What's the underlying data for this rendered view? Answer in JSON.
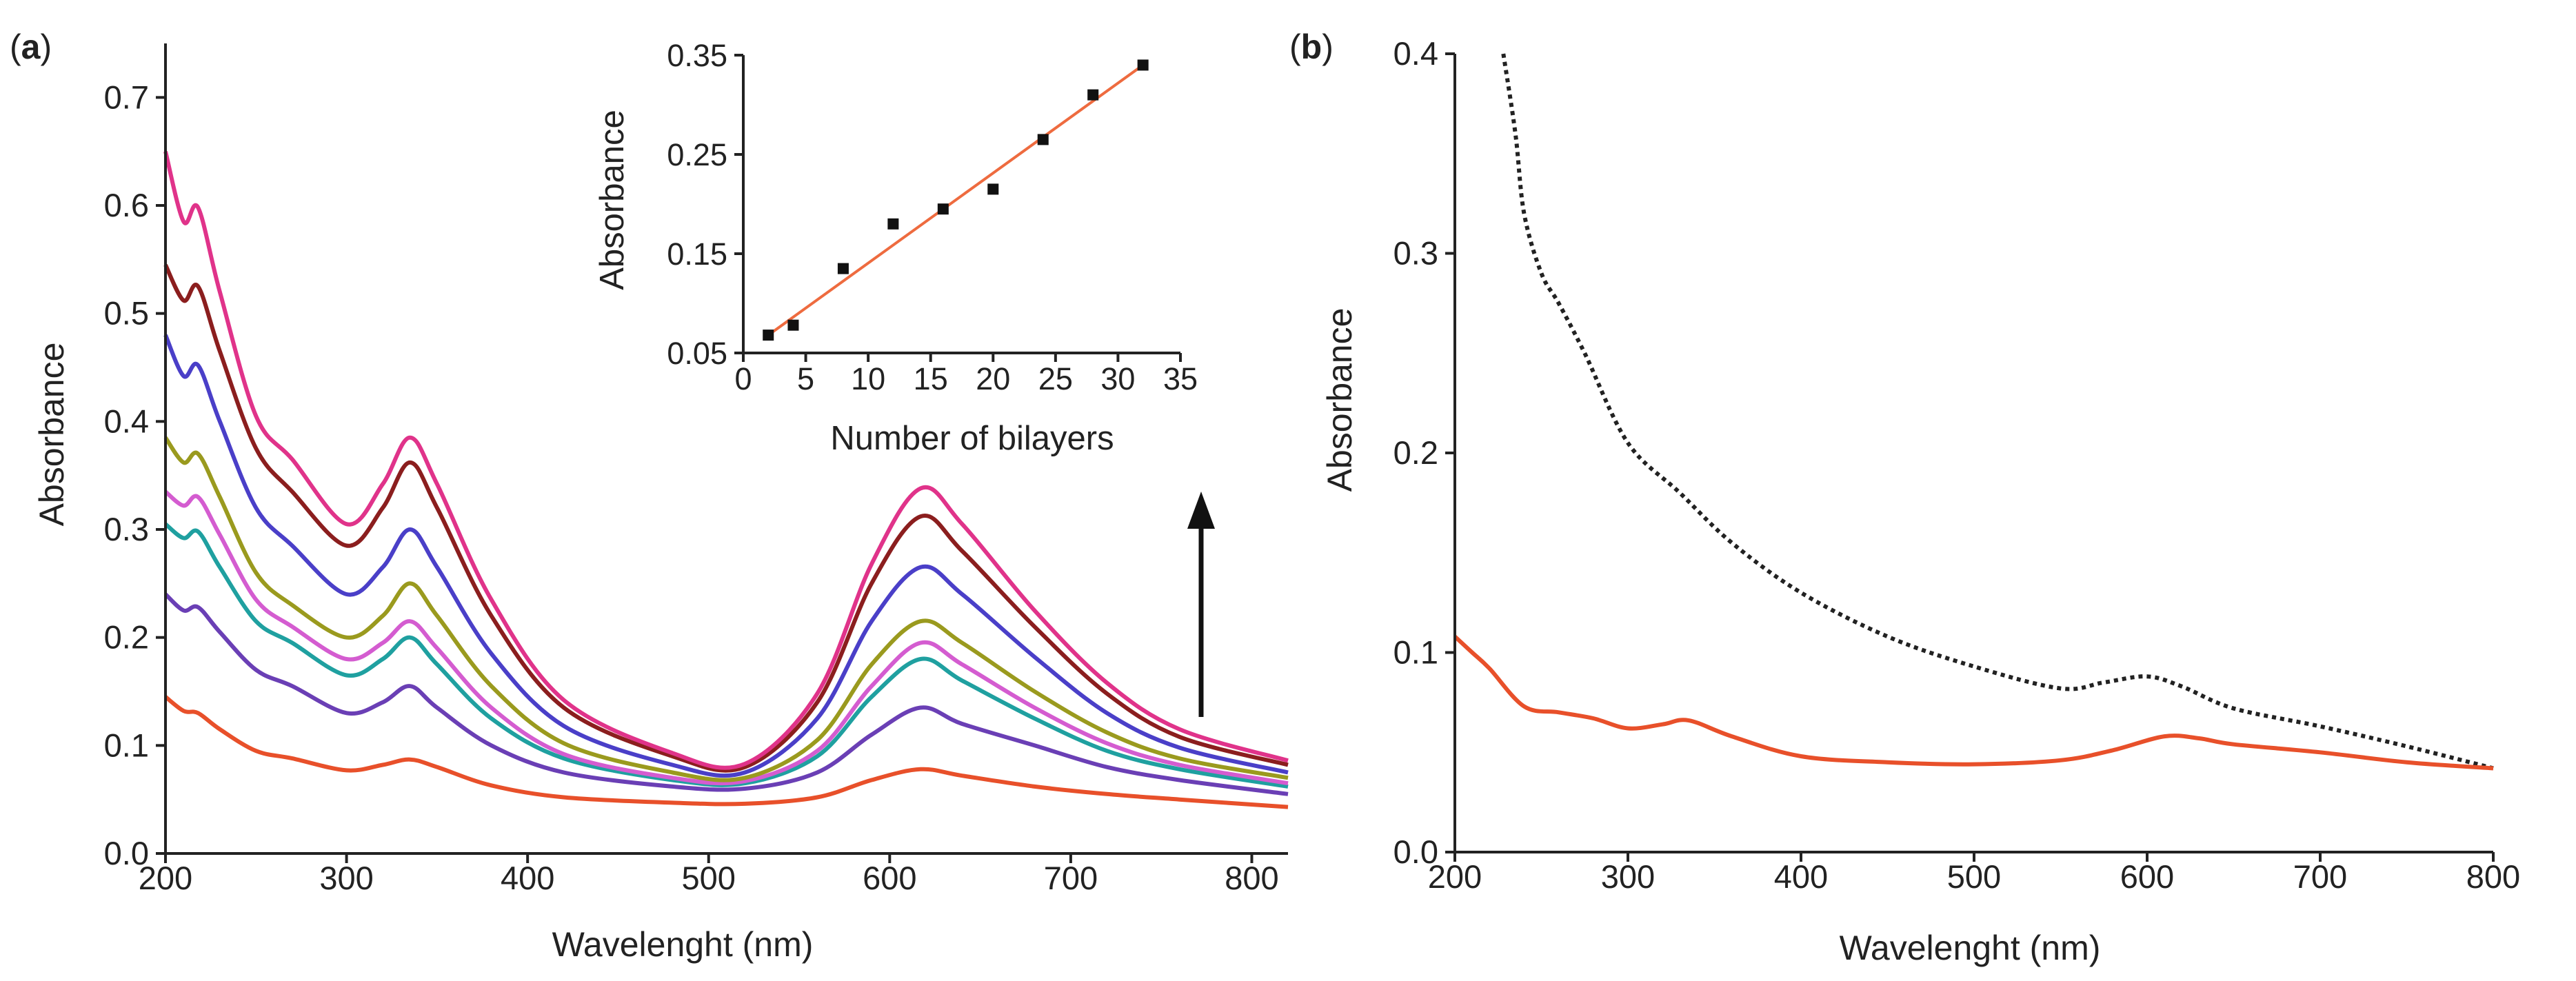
{
  "colors": {
    "axis": "#222222",
    "inset_fit": "#ee6b3f",
    "inset_marker": "#111111",
    "panel_b_dotted": "#222222",
    "panel_b_solid": "#e8502a"
  },
  "chart_data": [
    {
      "panel": "a",
      "panel_label_open": "(",
      "panel_label_letter": "a",
      "panel_label_close": ")",
      "type": "line",
      "xlabel": "Wavelenght (nm)",
      "ylabel": "Absorbance",
      "xlim": [
        200,
        820
      ],
      "ylim": [
        0,
        0.75
      ],
      "xticks": [
        200,
        300,
        400,
        500,
        600,
        700,
        800
      ],
      "yticks": [
        0.0,
        0.1,
        0.2,
        0.3,
        0.4,
        0.5,
        0.6,
        0.7
      ],
      "xtick_labels": [
        "200",
        "300",
        "400",
        "500",
        "600",
        "700",
        "800"
      ],
      "ytick_labels": [
        "0.0",
        "0.1",
        "0.2",
        "0.3",
        "0.4",
        "0.5",
        "0.6",
        "0.7"
      ],
      "annotation": "upward arrow indicating increasing number of bilayers",
      "x": [
        200,
        210,
        218,
        230,
        250,
        270,
        300,
        320,
        335,
        350,
        380,
        420,
        480,
        520,
        560,
        590,
        617,
        640,
        680,
        720,
        760,
        820
      ],
      "series": [
        {
          "color": "#e8502a",
          "values": [
            0.145,
            0.132,
            0.13,
            0.115,
            0.095,
            0.088,
            0.077,
            0.082,
            0.087,
            0.08,
            0.063,
            0.052,
            0.047,
            0.046,
            0.052,
            0.068,
            0.078,
            0.072,
            0.062,
            0.055,
            0.05,
            0.043
          ]
        },
        {
          "color": "#6a3fb5",
          "values": [
            0.24,
            0.225,
            0.228,
            0.205,
            0.17,
            0.155,
            0.13,
            0.14,
            0.155,
            0.135,
            0.1,
            0.075,
            0.062,
            0.06,
            0.075,
            0.11,
            0.135,
            0.12,
            0.1,
            0.08,
            0.068,
            0.055
          ]
        },
        {
          "color": "#1fa0a0",
          "values": [
            0.305,
            0.292,
            0.298,
            0.265,
            0.215,
            0.195,
            0.165,
            0.18,
            0.2,
            0.175,
            0.125,
            0.088,
            0.068,
            0.065,
            0.09,
            0.145,
            0.18,
            0.16,
            0.125,
            0.095,
            0.078,
            0.062
          ]
        },
        {
          "color": "#d45cd0",
          "values": [
            0.335,
            0.322,
            0.33,
            0.295,
            0.235,
            0.21,
            0.18,
            0.195,
            0.215,
            0.19,
            0.135,
            0.092,
            0.07,
            0.067,
            0.095,
            0.155,
            0.195,
            0.175,
            0.135,
            0.102,
            0.082,
            0.065
          ]
        },
        {
          "color": "#9a9a1e",
          "values": [
            0.385,
            0.362,
            0.37,
            0.33,
            0.26,
            0.23,
            0.2,
            0.22,
            0.25,
            0.22,
            0.155,
            0.102,
            0.075,
            0.07,
            0.105,
            0.175,
            0.215,
            0.195,
            0.15,
            0.112,
            0.088,
            0.07
          ]
        },
        {
          "color": "#4a3fc8",
          "values": [
            0.48,
            0.442,
            0.452,
            0.4,
            0.32,
            0.285,
            0.24,
            0.265,
            0.3,
            0.265,
            0.185,
            0.118,
            0.082,
            0.075,
            0.125,
            0.215,
            0.265,
            0.24,
            0.182,
            0.13,
            0.098,
            0.075
          ]
        },
        {
          "color": "#8b1e1e",
          "values": [
            0.545,
            0.512,
            0.525,
            0.465,
            0.375,
            0.335,
            0.285,
            0.32,
            0.362,
            0.32,
            0.22,
            0.135,
            0.09,
            0.08,
            0.14,
            0.25,
            0.312,
            0.28,
            0.21,
            0.148,
            0.108,
            0.082
          ]
        },
        {
          "color": "#e0338a",
          "values": [
            0.65,
            0.585,
            0.598,
            0.52,
            0.405,
            0.365,
            0.305,
            0.342,
            0.385,
            0.342,
            0.235,
            0.142,
            0.093,
            0.083,
            0.148,
            0.268,
            0.338,
            0.305,
            0.225,
            0.158,
            0.115,
            0.086
          ]
        }
      ]
    },
    {
      "panel": "a-inset",
      "type": "scatter",
      "xlabel": "Number of bilayers",
      "ylabel": "Absorbance",
      "xlim": [
        0,
        35
      ],
      "ylim": [
        0.05,
        0.35
      ],
      "xticks": [
        0,
        5,
        10,
        15,
        20,
        25,
        30,
        35
      ],
      "yticks": [
        0.05,
        0.15,
        0.25,
        0.35
      ],
      "xtick_labels": [
        "0",
        "5",
        "10",
        "15",
        "20",
        "25",
        "30",
        "35"
      ],
      "ytick_labels": [
        "0.05",
        "0.15",
        "0.25",
        "0.35"
      ],
      "x": [
        2,
        4,
        8,
        12,
        16,
        20,
        24,
        28,
        32
      ],
      "y": [
        0.068,
        0.078,
        0.135,
        0.18,
        0.195,
        0.215,
        0.265,
        0.31,
        0.34
      ],
      "fit": {
        "x": [
          2,
          32
        ],
        "y": [
          0.068,
          0.34
        ]
      }
    },
    {
      "panel": "b",
      "panel_label_open": "(",
      "panel_label_letter": "b",
      "panel_label_close": ")",
      "type": "line",
      "xlabel": "Wavelenght (nm)",
      "ylabel": "Absorbance",
      "xlim": [
        200,
        800
      ],
      "ylim": [
        0,
        0.4
      ],
      "xticks": [
        200,
        300,
        400,
        500,
        600,
        700,
        800
      ],
      "yticks": [
        0.0,
        0.1,
        0.2,
        0.3,
        0.4
      ],
      "xtick_labels": [
        "200",
        "300",
        "400",
        "500",
        "600",
        "700",
        "800"
      ],
      "ytick_labels": [
        "0.0",
        "0.1",
        "0.2",
        "0.3",
        "0.4"
      ],
      "series": [
        {
          "style": "dotted",
          "color": "#222222",
          "x": [
            228,
            235,
            240,
            250,
            260,
            275,
            300,
            330,
            360,
            400,
            450,
            500,
            550,
            575,
            600,
            620,
            650,
            700,
            750,
            800
          ],
          "values": [
            0.4,
            0.36,
            0.32,
            0.29,
            0.275,
            0.25,
            0.205,
            0.18,
            0.155,
            0.13,
            0.108,
            0.093,
            0.082,
            0.085,
            0.088,
            0.083,
            0.072,
            0.063,
            0.053,
            0.042
          ]
        },
        {
          "style": "solid",
          "color": "#e8502a",
          "x": [
            200,
            210,
            220,
            240,
            260,
            280,
            300,
            320,
            335,
            360,
            400,
            450,
            500,
            550,
            580,
            610,
            630,
            650,
            700,
            750,
            800
          ],
          "values": [
            0.108,
            0.1,
            0.092,
            0.073,
            0.07,
            0.067,
            0.062,
            0.064,
            0.066,
            0.058,
            0.048,
            0.045,
            0.044,
            0.046,
            0.051,
            0.058,
            0.057,
            0.054,
            0.05,
            0.045,
            0.042
          ]
        }
      ]
    }
  ]
}
